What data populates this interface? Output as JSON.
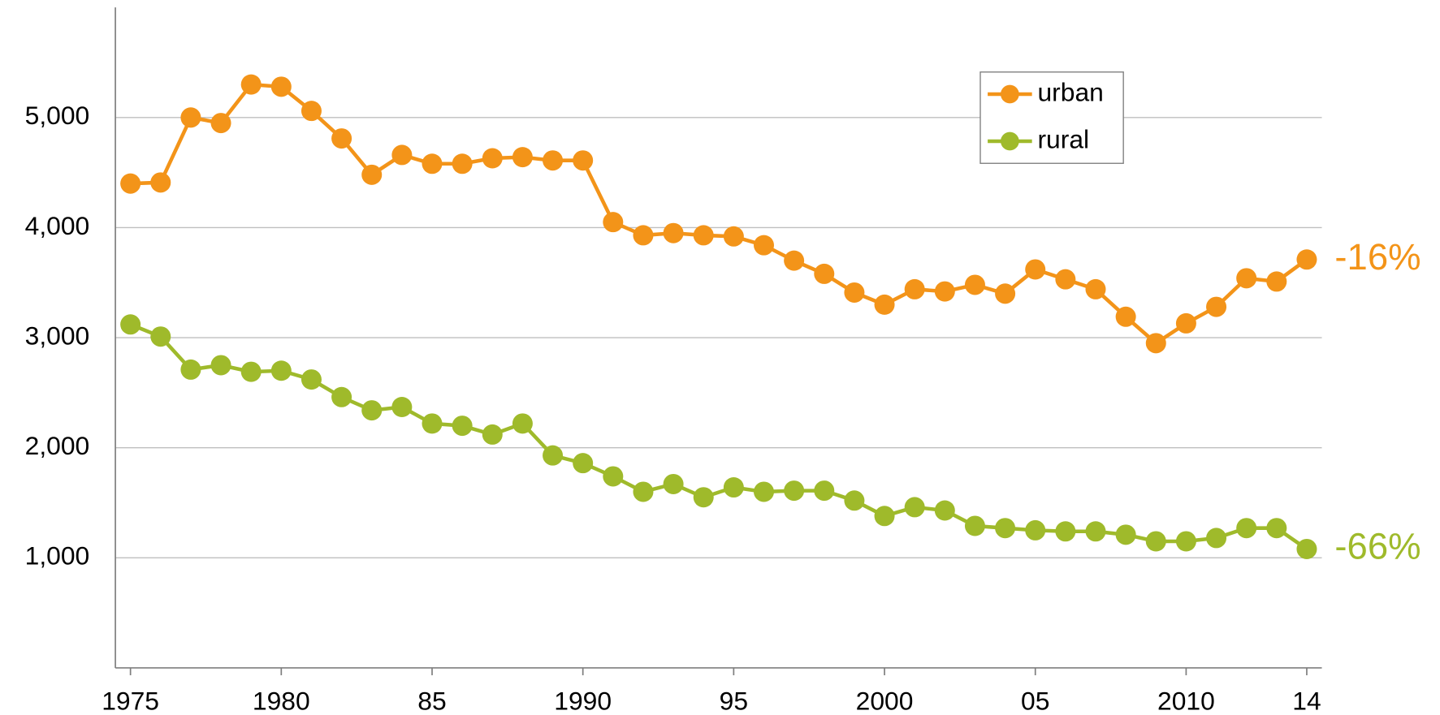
{
  "chart_data": {
    "type": "line",
    "x": [
      1975,
      1976,
      1977,
      1978,
      1979,
      1980,
      1981,
      1982,
      1983,
      1984,
      1985,
      1986,
      1987,
      1988,
      1989,
      1990,
      1991,
      1992,
      1993,
      1994,
      1995,
      1996,
      1997,
      1998,
      1999,
      2000,
      2001,
      2002,
      2003,
      2004,
      2005,
      2006,
      2007,
      2008,
      2009,
      2010,
      2011,
      2012,
      2013,
      2014
    ],
    "series": [
      {
        "name": "urban",
        "color": "#f39419",
        "end_label": "-16%",
        "values": [
          4400,
          4410,
          5000,
          4950,
          5300,
          5280,
          5060,
          4810,
          4480,
          4660,
          4580,
          4580,
          4630,
          4640,
          4610,
          4610,
          4050,
          3930,
          3950,
          3930,
          3920,
          3840,
          3700,
          3580,
          3410,
          3300,
          3440,
          3420,
          3480,
          3400,
          3620,
          3530,
          3440,
          3190,
          2950,
          3130,
          3280,
          3540,
          3510,
          3710
        ]
      },
      {
        "name": "rural",
        "color": "#9fba2b",
        "end_label": "-66%",
        "values": [
          3120,
          3010,
          2710,
          2750,
          2690,
          2700,
          2620,
          2460,
          2340,
          2370,
          2220,
          2200,
          2120,
          2220,
          1930,
          1860,
          1740,
          1600,
          1670,
          1550,
          1640,
          1600,
          1610,
          1610,
          1520,
          1380,
          1460,
          1430,
          1290,
          1270,
          1250,
          1240,
          1240,
          1210,
          1150,
          1150,
          1180,
          1270,
          1270,
          1080
        ]
      }
    ],
    "xlim": [
      1974.5,
      2014.5
    ],
    "xticks": [
      1975,
      1980,
      {
        "value": 1985,
        "label": "85"
      },
      1990,
      {
        "value": 1995,
        "label": "95"
      },
      2000,
      {
        "value": 2005,
        "label": "05"
      },
      2010,
      {
        "value": 2014,
        "label": "14"
      }
    ],
    "ylim": [
      0,
      6000
    ],
    "yticks": [
      {
        "value": 1000,
        "label": "1,000"
      },
      {
        "value": 2000,
        "label": "2,000"
      },
      {
        "value": 3000,
        "label": "3,000"
      },
      {
        "value": 4000,
        "label": "4,000"
      },
      {
        "value": 5000,
        "label": "5,000"
      }
    ],
    "grid": true,
    "legend": "top-right"
  }
}
